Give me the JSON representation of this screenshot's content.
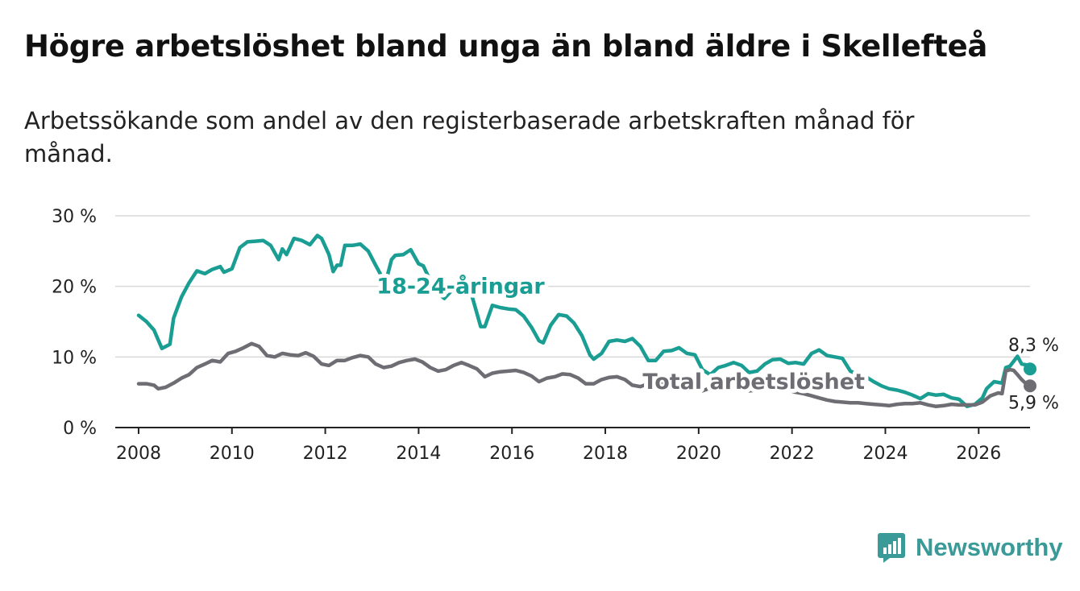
{
  "header": {
    "title": "Högre arbetslöshet bland unga än bland äldre i Skellefteå",
    "subtitle": "Arbetssökande som andel av den registerbaserade arbetskraften månad för månad."
  },
  "brand": {
    "name": "Newsworthy",
    "color": "#3a9a97",
    "icon": "newsworthy-logo-icon"
  },
  "chart_data": {
    "type": "line",
    "title": "Högre arbetslöshet bland unga än bland äldre i Skellefteå",
    "xlabel": "",
    "ylabel": "",
    "xlim": [
      2007.5,
      2027.1
    ],
    "ylim": [
      0,
      30
    ],
    "grid": true,
    "x_ticks": [
      "2008",
      "2010",
      "2012",
      "2014",
      "2016",
      "2018",
      "2020",
      "2022",
      "2024",
      "2026"
    ],
    "y_ticks": [
      {
        "value": 0,
        "label": "0 %"
      },
      {
        "value": 10,
        "label": "10 %"
      },
      {
        "value": 20,
        "label": "20 %"
      },
      {
        "value": 30,
        "label": "30 %"
      }
    ],
    "series": [
      {
        "name": "18-24-åringar",
        "color": "#1a9e93",
        "end_label": "8,3 %",
        "points": [
          [
            2008.0,
            15.9
          ],
          [
            2008.17,
            15.0
          ],
          [
            2008.33,
            13.8
          ],
          [
            2008.5,
            11.2
          ],
          [
            2008.67,
            11.8
          ],
          [
            2008.75,
            15.5
          ],
          [
            2008.92,
            18.5
          ],
          [
            2009.08,
            20.5
          ],
          [
            2009.25,
            22.2
          ],
          [
            2009.42,
            21.8
          ],
          [
            2009.58,
            22.4
          ],
          [
            2009.75,
            22.8
          ],
          [
            2009.83,
            22.0
          ],
          [
            2010.0,
            22.5
          ],
          [
            2010.17,
            25.5
          ],
          [
            2010.33,
            26.3
          ],
          [
            2010.5,
            26.4
          ],
          [
            2010.67,
            26.5
          ],
          [
            2010.83,
            25.8
          ],
          [
            2011.0,
            23.8
          ],
          [
            2011.08,
            25.3
          ],
          [
            2011.17,
            24.5
          ],
          [
            2011.33,
            26.8
          ],
          [
            2011.5,
            26.5
          ],
          [
            2011.67,
            25.9
          ],
          [
            2011.83,
            27.2
          ],
          [
            2011.92,
            26.8
          ],
          [
            2012.08,
            24.5
          ],
          [
            2012.17,
            22.1
          ],
          [
            2012.25,
            23.0
          ],
          [
            2012.33,
            23.0
          ],
          [
            2012.42,
            25.8
          ],
          [
            2012.58,
            25.8
          ],
          [
            2012.75,
            26.0
          ],
          [
            2012.92,
            25.0
          ],
          [
            2013.08,
            23.0
          ],
          [
            2013.25,
            20.9
          ],
          [
            2013.33,
            21.5
          ],
          [
            2013.42,
            23.8
          ],
          [
            2013.5,
            24.4
          ],
          [
            2013.67,
            24.5
          ],
          [
            2013.83,
            25.2
          ],
          [
            2014.0,
            23.2
          ],
          [
            2014.1,
            22.9
          ],
          [
            2014.2,
            21.5
          ],
          [
            2014.35,
            19.4
          ],
          [
            2014.55,
            18.3
          ],
          [
            2014.75,
            19.7
          ],
          [
            2015.0,
            21.8
          ],
          [
            2015.17,
            18.0
          ],
          [
            2015.33,
            14.3
          ],
          [
            2015.42,
            14.3
          ],
          [
            2015.58,
            17.3
          ],
          [
            2015.75,
            17.0
          ],
          [
            2015.92,
            16.8
          ],
          [
            2016.08,
            16.7
          ],
          [
            2016.25,
            15.8
          ],
          [
            2016.42,
            14.2
          ],
          [
            2016.58,
            12.3
          ],
          [
            2016.67,
            12.0
          ],
          [
            2016.83,
            14.5
          ],
          [
            2017.0,
            16.0
          ],
          [
            2017.17,
            15.8
          ],
          [
            2017.33,
            14.8
          ],
          [
            2017.5,
            13.0
          ],
          [
            2017.67,
            10.3
          ],
          [
            2017.75,
            9.7
          ],
          [
            2017.92,
            10.5
          ],
          [
            2018.08,
            12.2
          ],
          [
            2018.25,
            12.4
          ],
          [
            2018.42,
            12.2
          ],
          [
            2018.58,
            12.6
          ],
          [
            2018.75,
            11.5
          ],
          [
            2018.92,
            9.5
          ],
          [
            2019.08,
            9.5
          ],
          [
            2019.25,
            10.8
          ],
          [
            2019.42,
            10.9
          ],
          [
            2019.58,
            11.3
          ],
          [
            2019.75,
            10.5
          ],
          [
            2019.92,
            10.3
          ],
          [
            2020.08,
            8.2
          ],
          [
            2020.25,
            7.5
          ],
          [
            2020.42,
            8.5
          ],
          [
            2020.58,
            8.8
          ],
          [
            2020.75,
            9.2
          ],
          [
            2020.92,
            8.8
          ],
          [
            2021.08,
            7.8
          ],
          [
            2021.25,
            8.0
          ],
          [
            2021.42,
            9.0
          ],
          [
            2021.58,
            9.6
          ],
          [
            2021.75,
            9.7
          ],
          [
            2021.92,
            9.1
          ],
          [
            2022.08,
            9.2
          ],
          [
            2022.25,
            9.0
          ],
          [
            2022.42,
            10.5
          ],
          [
            2022.58,
            11.0
          ],
          [
            2022.75,
            10.2
          ],
          [
            2022.92,
            10.0
          ],
          [
            2023.08,
            9.8
          ],
          [
            2023.25,
            8.0
          ],
          [
            2023.42,
            7.5
          ],
          [
            2023.58,
            7.2
          ],
          [
            2023.75,
            6.5
          ],
          [
            2023.92,
            5.9
          ],
          [
            2024.08,
            5.5
          ],
          [
            2024.25,
            5.3
          ],
          [
            2024.42,
            5.0
          ],
          [
            2024.58,
            4.6
          ],
          [
            2024.75,
            4.1
          ],
          [
            2024.92,
            4.8
          ],
          [
            2025.08,
            4.6
          ],
          [
            2025.25,
            4.7
          ],
          [
            2025.42,
            4.2
          ],
          [
            2025.58,
            4.0
          ],
          [
            2025.75,
            3.0
          ],
          [
            2025.92,
            3.3
          ],
          [
            2026.08,
            4.2
          ],
          [
            2026.17,
            5.5
          ],
          [
            2026.33,
            6.5
          ],
          [
            2026.5,
            6.3
          ],
          [
            2026.58,
            8.5
          ],
          [
            2026.67,
            8.7
          ],
          [
            2026.83,
            10.1
          ],
          [
            2026.92,
            9.0
          ],
          [
            2027.0,
            8.9
          ],
          [
            2027.08,
            8.8
          ],
          [
            2027.1,
            8.3
          ]
        ]
      },
      {
        "name": "Total arbetslöshet",
        "color": "#6e6d73",
        "end_label": "5,9 %",
        "points": [
          [
            2008.0,
            6.2
          ],
          [
            2008.17,
            6.2
          ],
          [
            2008.33,
            6.0
          ],
          [
            2008.42,
            5.5
          ],
          [
            2008.58,
            5.7
          ],
          [
            2008.75,
            6.3
          ],
          [
            2008.92,
            7.0
          ],
          [
            2009.08,
            7.5
          ],
          [
            2009.25,
            8.5
          ],
          [
            2009.42,
            9.0
          ],
          [
            2009.58,
            9.5
          ],
          [
            2009.75,
            9.3
          ],
          [
            2009.92,
            10.5
          ],
          [
            2010.08,
            10.8
          ],
          [
            2010.25,
            11.3
          ],
          [
            2010.42,
            11.9
          ],
          [
            2010.58,
            11.5
          ],
          [
            2010.75,
            10.2
          ],
          [
            2010.92,
            10.0
          ],
          [
            2011.08,
            10.5
          ],
          [
            2011.25,
            10.3
          ],
          [
            2011.42,
            10.2
          ],
          [
            2011.58,
            10.6
          ],
          [
            2011.75,
            10.1
          ],
          [
            2011.92,
            9.0
          ],
          [
            2012.08,
            8.8
          ],
          [
            2012.25,
            9.5
          ],
          [
            2012.42,
            9.5
          ],
          [
            2012.58,
            9.9
          ],
          [
            2012.75,
            10.2
          ],
          [
            2012.92,
            10.0
          ],
          [
            2013.08,
            9.0
          ],
          [
            2013.25,
            8.5
          ],
          [
            2013.42,
            8.7
          ],
          [
            2013.58,
            9.2
          ],
          [
            2013.75,
            9.5
          ],
          [
            2013.92,
            9.7
          ],
          [
            2014.08,
            9.3
          ],
          [
            2014.25,
            8.5
          ],
          [
            2014.42,
            8.0
          ],
          [
            2014.58,
            8.2
          ],
          [
            2014.75,
            8.8
          ],
          [
            2014.92,
            9.2
          ],
          [
            2015.08,
            8.8
          ],
          [
            2015.25,
            8.3
          ],
          [
            2015.42,
            7.2
          ],
          [
            2015.58,
            7.7
          ],
          [
            2015.75,
            7.9
          ],
          [
            2015.92,
            8.0
          ],
          [
            2016.08,
            8.1
          ],
          [
            2016.25,
            7.8
          ],
          [
            2016.42,
            7.3
          ],
          [
            2016.58,
            6.5
          ],
          [
            2016.75,
            7.0
          ],
          [
            2016.92,
            7.2
          ],
          [
            2017.08,
            7.6
          ],
          [
            2017.25,
            7.5
          ],
          [
            2017.42,
            7.0
          ],
          [
            2017.58,
            6.2
          ],
          [
            2017.75,
            6.2
          ],
          [
            2017.92,
            6.8
          ],
          [
            2018.08,
            7.1
          ],
          [
            2018.25,
            7.2
          ],
          [
            2018.42,
            6.8
          ],
          [
            2018.58,
            6.0
          ],
          [
            2018.75,
            5.8
          ],
          [
            2018.92,
            6.2
          ],
          [
            2019.08,
            6.3
          ],
          [
            2019.25,
            6.5
          ],
          [
            2019.42,
            6.3
          ],
          [
            2019.58,
            6.3
          ],
          [
            2019.75,
            6.1
          ],
          [
            2019.92,
            5.6
          ],
          [
            2020.08,
            5.2
          ],
          [
            2020.25,
            5.6
          ],
          [
            2020.42,
            6.0
          ],
          [
            2020.58,
            6.1
          ],
          [
            2020.75,
            5.8
          ],
          [
            2020.92,
            5.6
          ],
          [
            2021.08,
            5.2
          ],
          [
            2021.25,
            5.3
          ],
          [
            2021.42,
            5.4
          ],
          [
            2021.58,
            5.6
          ],
          [
            2021.75,
            5.5
          ],
          [
            2021.92,
            5.3
          ],
          [
            2022.08,
            5.0
          ],
          [
            2022.25,
            4.8
          ],
          [
            2022.42,
            4.5
          ],
          [
            2022.58,
            4.2
          ],
          [
            2022.75,
            3.9
          ],
          [
            2022.92,
            3.7
          ],
          [
            2023.08,
            3.6
          ],
          [
            2023.25,
            3.5
          ],
          [
            2023.42,
            3.5
          ],
          [
            2023.58,
            3.4
          ],
          [
            2023.75,
            3.3
          ],
          [
            2023.92,
            3.2
          ],
          [
            2024.08,
            3.1
          ],
          [
            2024.25,
            3.3
          ],
          [
            2024.42,
            3.4
          ],
          [
            2024.58,
            3.4
          ],
          [
            2024.75,
            3.5
          ],
          [
            2024.92,
            3.2
          ],
          [
            2025.08,
            3.0
          ],
          [
            2025.25,
            3.1
          ],
          [
            2025.42,
            3.3
          ],
          [
            2025.58,
            3.2
          ],
          [
            2025.75,
            3.2
          ],
          [
            2025.92,
            3.2
          ],
          [
            2026.08,
            3.6
          ],
          [
            2026.25,
            4.5
          ],
          [
            2026.42,
            4.9
          ],
          [
            2026.5,
            4.8
          ],
          [
            2026.58,
            8.0
          ],
          [
            2026.67,
            8.2
          ],
          [
            2026.75,
            8.1
          ],
          [
            2026.83,
            7.5
          ],
          [
            2026.92,
            6.8
          ],
          [
            2027.0,
            6.3
          ],
          [
            2027.1,
            5.9
          ]
        ]
      }
    ]
  }
}
